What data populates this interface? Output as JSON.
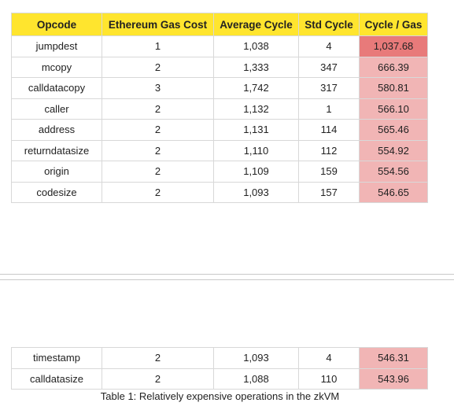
{
  "table": {
    "headers": [
      "Opcode",
      "Ethereum Gas Cost",
      "Average Cycle",
      "Std Cycle",
      "Cycle / Gas"
    ],
    "rows_page1": [
      [
        "jumpdest",
        "1",
        "1,038",
        "4",
        "1,037.68"
      ],
      [
        "mcopy",
        "2",
        "1,333",
        "347",
        "666.39"
      ],
      [
        "calldatacopy",
        "3",
        "1,742",
        "317",
        "580.81"
      ],
      [
        "caller",
        "2",
        "1,132",
        "1",
        "566.10"
      ],
      [
        "address",
        "2",
        "1,131",
        "114",
        "565.46"
      ],
      [
        "returndatasize",
        "2",
        "1,110",
        "112",
        "554.92"
      ],
      [
        "origin",
        "2",
        "1,109",
        "159",
        "554.56"
      ],
      [
        "codesize",
        "2",
        "1,093",
        "157",
        "546.65"
      ]
    ],
    "rows_page2": [
      [
        "timestamp",
        "2",
        "1,093",
        "4",
        "546.31"
      ],
      [
        "calldatasize",
        "2",
        "1,088",
        "110",
        "543.96"
      ]
    ],
    "colors": {
      "header_bg": "#ffe52e",
      "top_value_bg": "#e87a7a",
      "value_bg": "#f1b5b5"
    }
  },
  "caption": "Table 1: Relatively expensive operations in the zkVM"
}
